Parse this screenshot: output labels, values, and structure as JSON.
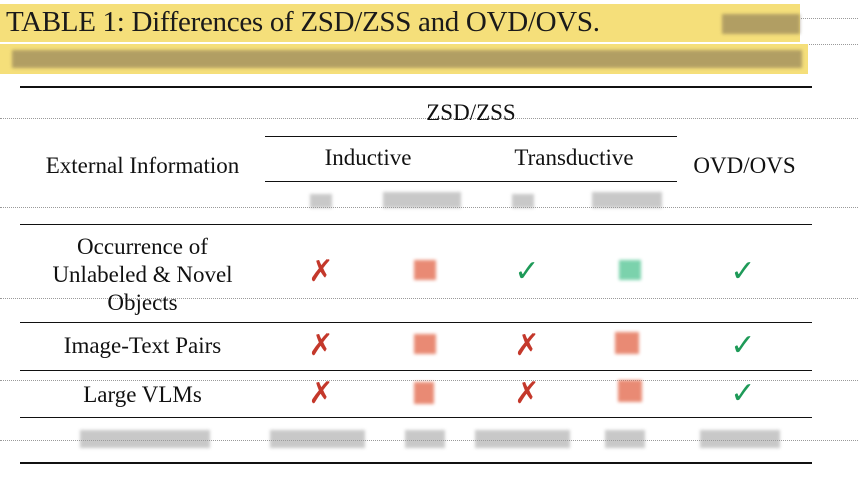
{
  "caption": {
    "text": "TABLE 1: Differences of ZSD/ZSS and OVD/OVS.",
    "highlight_color": "#f5df7a"
  },
  "table": {
    "group_header": "ZSD/ZSS",
    "row_header_label": "External Information",
    "subgroups": [
      "Inductive",
      "Transductive"
    ],
    "ovd_header": "OVD/OVS",
    "rows": [
      {
        "label_lines": [
          "Occurrence of",
          "Unlabeled & Novel",
          "Objects"
        ],
        "marks": [
          "cross",
          "cross",
          "check",
          "check",
          "check"
        ]
      },
      {
        "label_lines": [
          "Image-Text Pairs"
        ],
        "marks": [
          "cross",
          "cross",
          "cross",
          "cross",
          "check"
        ]
      },
      {
        "label_lines": [
          "Large VLMs"
        ],
        "marks": [
          "cross",
          "cross",
          "cross",
          "cross",
          "check"
        ]
      }
    ],
    "mark_symbols": {
      "cross": "✗",
      "check": "✓"
    },
    "colors": {
      "cross": "#c4382b",
      "check": "#1e9a58"
    }
  }
}
